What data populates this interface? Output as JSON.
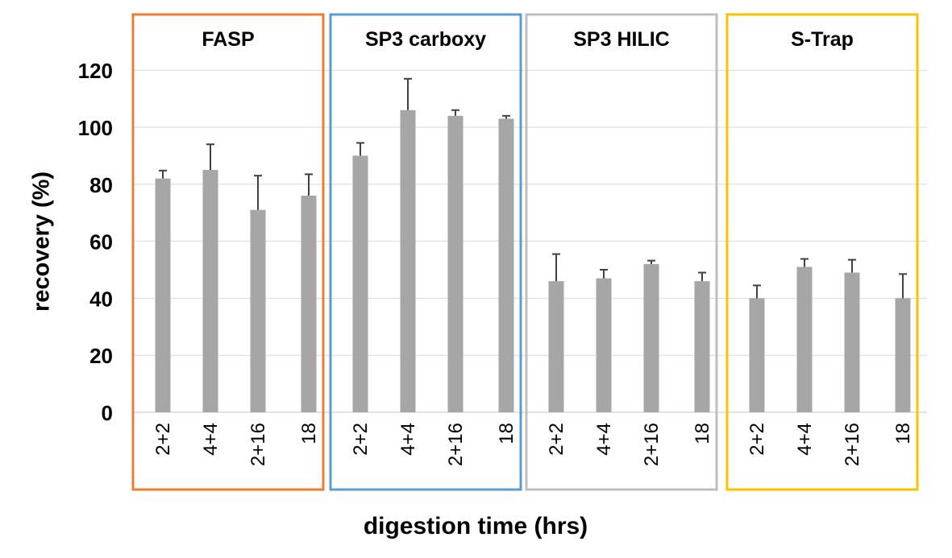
{
  "chart_data": {
    "type": "bar",
    "title": "",
    "xlabel": "digestion time (hrs)",
    "ylabel": "recovery (%)",
    "ylim": [
      0,
      120
    ],
    "yticks": [
      0,
      20,
      40,
      60,
      80,
      100,
      120
    ],
    "grid": true,
    "bar_color": "#a6a6a6",
    "error_bar_color": "#404040",
    "groups": [
      {
        "name": "FASP",
        "frame_color": "#ed7d31",
        "categories": [
          "2+2",
          "4+4",
          "2+16",
          "18"
        ],
        "values": [
          82,
          85,
          71,
          76
        ],
        "errors": [
          2.8,
          9,
          12,
          7.5
        ]
      },
      {
        "name": "SP3 carboxy",
        "frame_color": "#5b9bd5",
        "categories": [
          "2+2",
          "4+4",
          "2+16",
          "18"
        ],
        "values": [
          90,
          106,
          104,
          103
        ],
        "errors": [
          4.5,
          11,
          2,
          1
        ]
      },
      {
        "name": "SP3 HILIC",
        "frame_color": "#bfbfbf",
        "categories": [
          "2+2",
          "4+4",
          "2+16",
          "18"
        ],
        "values": [
          46,
          47,
          52,
          46
        ],
        "errors": [
          9.5,
          3,
          1.2,
          3
        ]
      },
      {
        "name": "S-Trap",
        "frame_color": "#ffc000",
        "categories": [
          "2+2",
          "4+4",
          "2+16",
          "18"
        ],
        "values": [
          40,
          51,
          49,
          40
        ],
        "errors": [
          4.5,
          2.8,
          4.5,
          8.5
        ]
      }
    ]
  }
}
